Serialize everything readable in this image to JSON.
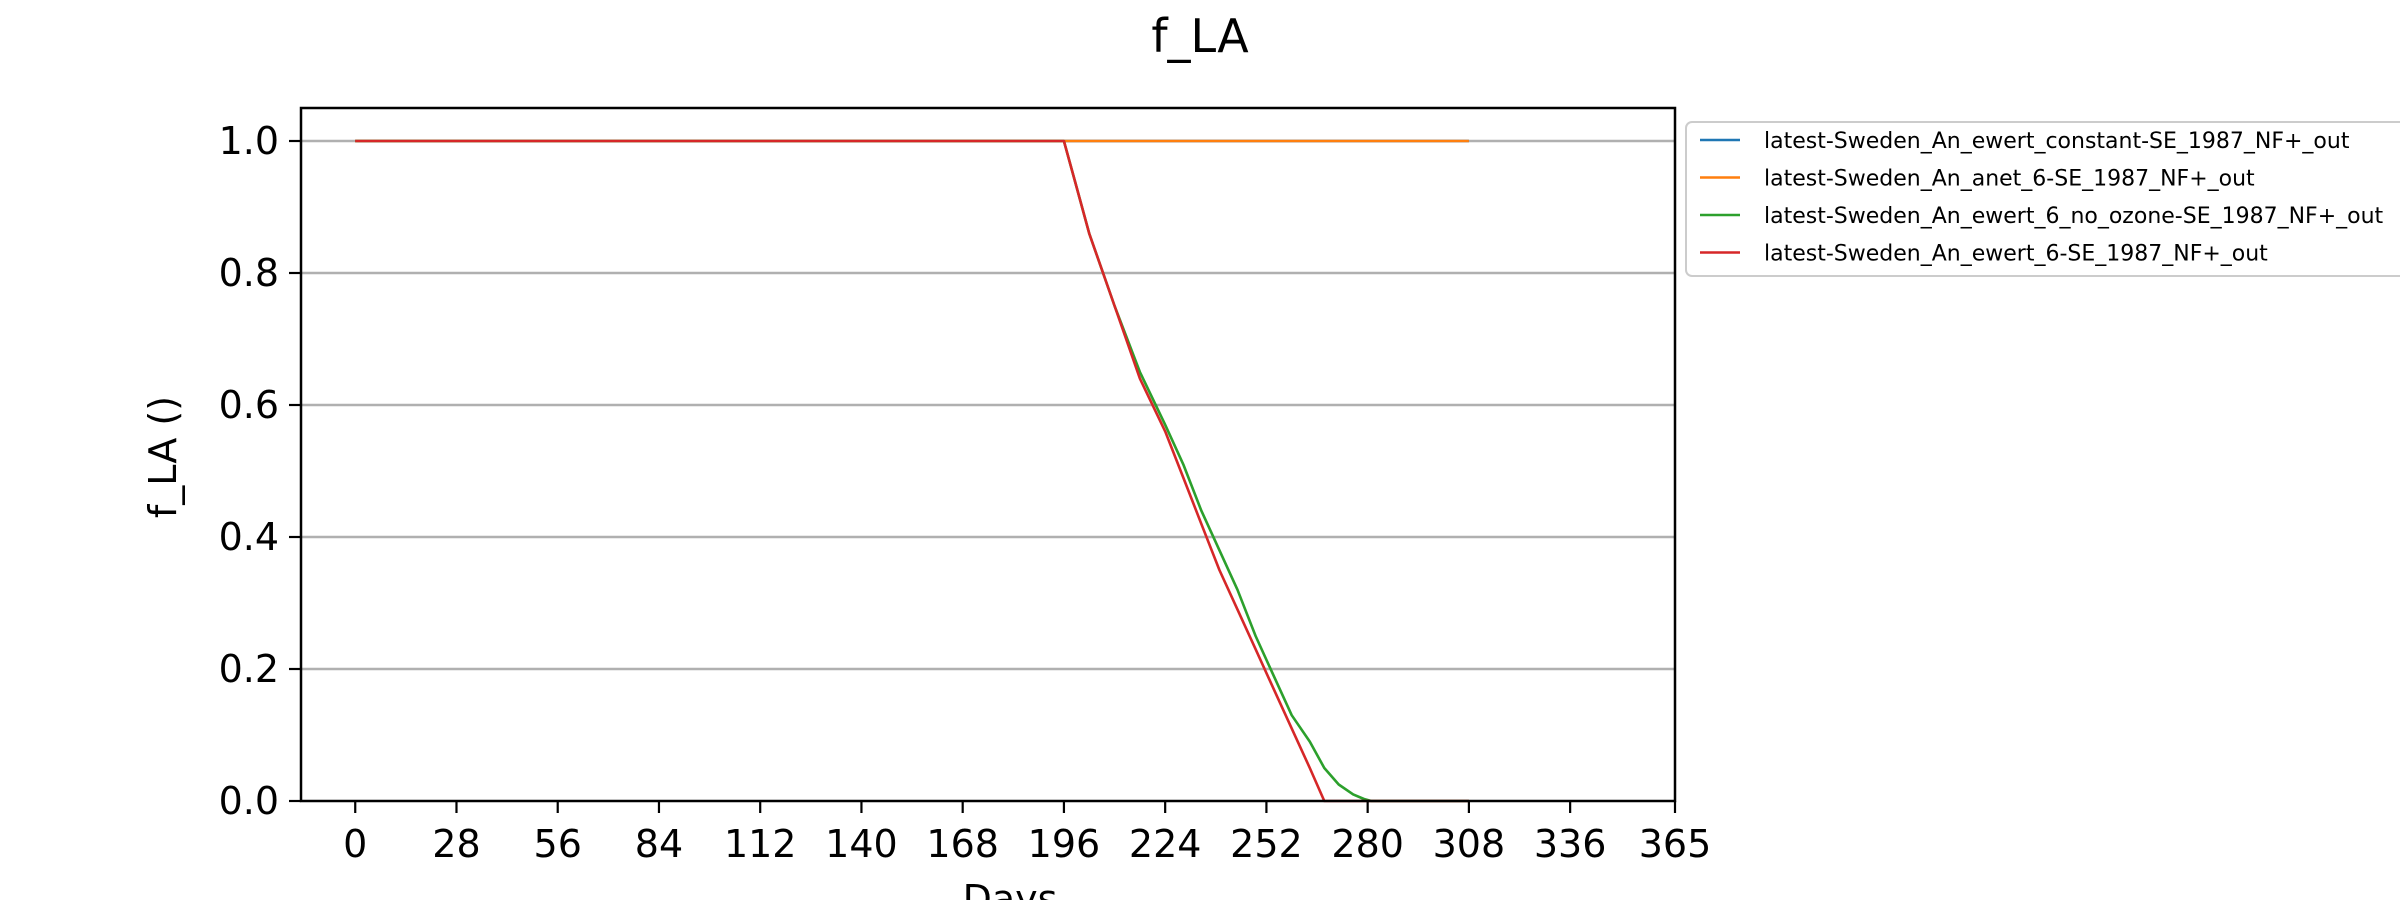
{
  "chart_data": {
    "type": "line",
    "title": "f_LA",
    "xlabel": "Days",
    "ylabel": "f_LA ()",
    "xlim": [
      -15,
      365
    ],
    "ylim": [
      0.0,
      1.05
    ],
    "xticks": [
      0,
      28,
      56,
      84,
      112,
      140,
      168,
      196,
      224,
      252,
      280,
      308,
      336,
      365
    ],
    "xtick_labels": [
      "0",
      "28",
      "56",
      "84",
      "112",
      "140",
      "168",
      "196",
      "224",
      "252",
      "280",
      "308",
      "336",
      "365"
    ],
    "yticks": [
      0.0,
      0.2,
      0.4,
      0.6,
      0.8,
      1.0
    ],
    "ytick_labels": [
      "0.0",
      "0.2",
      "0.4",
      "0.6",
      "0.8",
      "1.0"
    ],
    "grid": "horizontal",
    "legend_location": "outside-right",
    "series": [
      {
        "name": "latest-Sweden_An_ewert_constant-SE_1987_NF+_out",
        "color": "#1f77b4",
        "x": [
          0,
          308
        ],
        "y": [
          1.0,
          1.0
        ]
      },
      {
        "name": "latest-Sweden_An_anet_6-SE_1987_NF+_out",
        "color": "#ff7f0e",
        "x": [
          0,
          308
        ],
        "y": [
          1.0,
          1.0
        ]
      },
      {
        "name": "latest-Sweden_An_ewert_6_no_ozone-SE_1987_NF+_out",
        "color": "#2ca02c",
        "x": [
          0,
          196,
          199,
          203,
          210,
          217,
          224,
          229,
          234,
          239,
          244,
          249,
          254,
          259,
          264,
          268,
          272,
          276,
          279,
          281,
          308
        ],
        "y": [
          1.0,
          1.0,
          0.94,
          0.86,
          0.75,
          0.65,
          0.57,
          0.51,
          0.44,
          0.38,
          0.32,
          0.25,
          0.19,
          0.13,
          0.09,
          0.05,
          0.025,
          0.01,
          0.003,
          0.0,
          0.0
        ]
      },
      {
        "name": "latest-Sweden_An_ewert_6-SE_1987_NF+_out",
        "color": "#d62728",
        "x": [
          0,
          196,
          199,
          203,
          210,
          217,
          224,
          229,
          234,
          239,
          244,
          249,
          254,
          259,
          264,
          268,
          308
        ],
        "y": [
          1.0,
          1.0,
          0.94,
          0.86,
          0.75,
          0.64,
          0.56,
          0.49,
          0.42,
          0.35,
          0.29,
          0.23,
          0.17,
          0.11,
          0.05,
          0.0,
          0.0
        ]
      }
    ]
  }
}
